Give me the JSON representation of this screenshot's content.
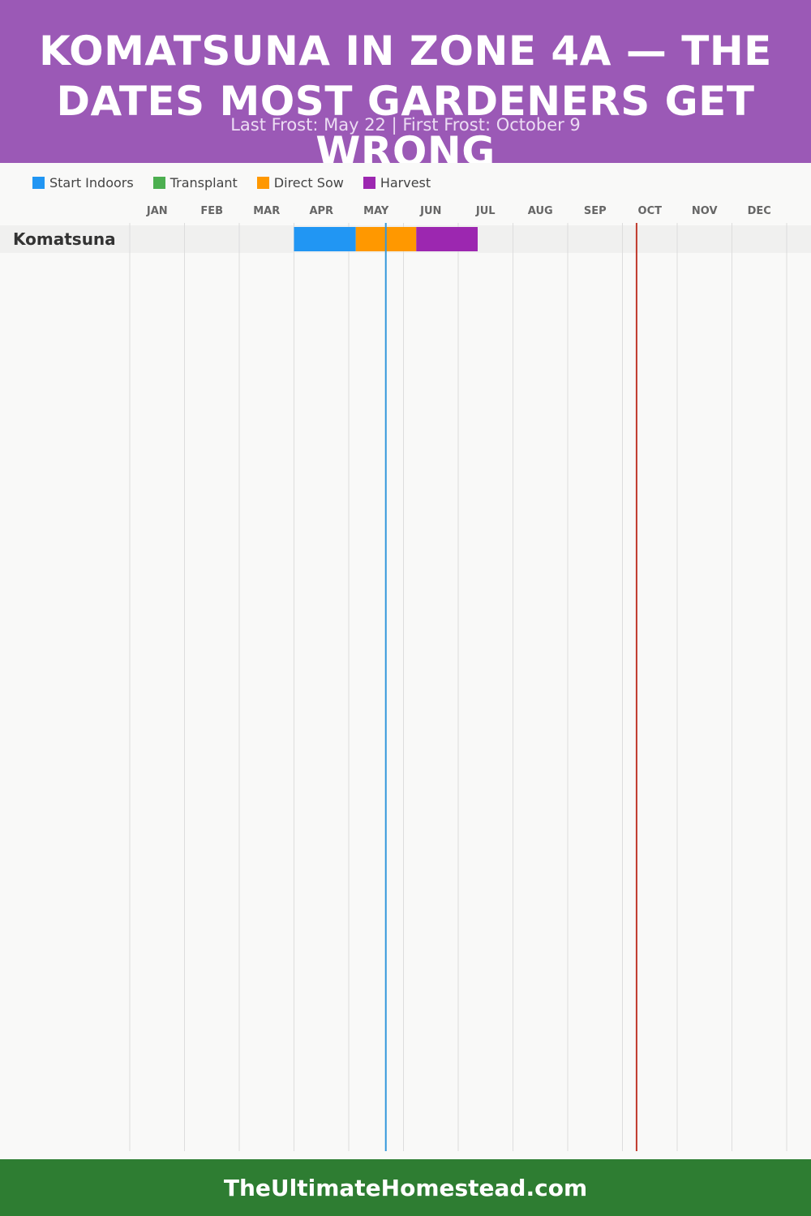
{
  "header": {
    "title": "KOMATSUNA IN ZONE 4A — THE DATES MOST GARDENERS GET WRONG",
    "subtitle": "Last Frost: May 22 | First Frost: October 9"
  },
  "legend": [
    {
      "label": "Start Indoors",
      "color": "#2196f3"
    },
    {
      "label": "Transplant",
      "color": "#4caf50"
    },
    {
      "label": "Direct Sow",
      "color": "#ff9800"
    },
    {
      "label": "Harvest",
      "color": "#9c27b0"
    }
  ],
  "chart_data": {
    "type": "gantt",
    "months": [
      "JAN",
      "FEB",
      "MAR",
      "APR",
      "MAY",
      "JUN",
      "JUL",
      "AUG",
      "SEP",
      "OCT",
      "NOV",
      "DEC"
    ],
    "rows": [
      {
        "label": "Komatsuna",
        "segments": [
          {
            "phase": "Start Indoors",
            "start": "Apr 1",
            "end": "May 5",
            "color": "#2196f3"
          },
          {
            "phase": "Direct Sow",
            "start": "May 5",
            "end": "Jun 8",
            "color": "#ff9800"
          },
          {
            "phase": "Harvest",
            "start": "Jun 8",
            "end": "Jul 12",
            "color": "#9c27b0"
          }
        ]
      }
    ],
    "markers": [
      {
        "name": "Last Frost",
        "date": "May 22",
        "color": "#3498db"
      },
      {
        "name": "First Frost",
        "date": "Oct 9",
        "color": "#c0392b"
      }
    ]
  },
  "footer": {
    "text": "TheUltimateHomestead.com"
  }
}
